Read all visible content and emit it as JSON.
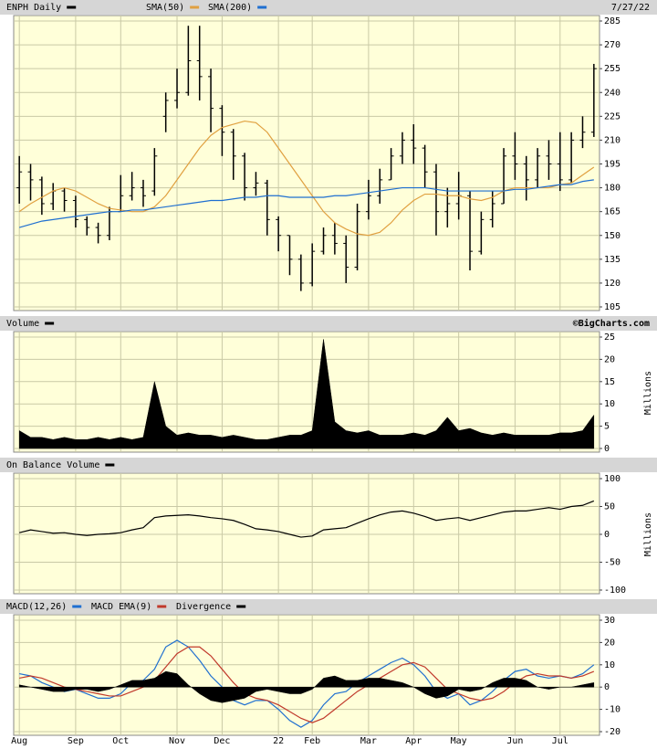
{
  "chart_data": [
    {
      "type": "ohlc",
      "date": "7/27/22",
      "ylim": [
        105,
        285
      ],
      "yticks": [
        105,
        120,
        135,
        150,
        165,
        180,
        195,
        210,
        225,
        240,
        255,
        270,
        285
      ],
      "grid": true,
      "series": [
        {
          "name": "ENPH Daily",
          "color": "#000000",
          "open": [
            180,
            190,
            185,
            170,
            178,
            172,
            160,
            155,
            150,
            165,
            175,
            180,
            178,
            225,
            235,
            240,
            260,
            250,
            230,
            215,
            200,
            180,
            183,
            160,
            150,
            135,
            120,
            140,
            150,
            145,
            130,
            165,
            175,
            185,
            200,
            210,
            205,
            190,
            165,
            170,
            175,
            140,
            160,
            170,
            200,
            195,
            185,
            200,
            195,
            185,
            210,
            215
          ],
          "high": [
            200,
            195,
            187,
            183,
            180,
            175,
            162,
            158,
            168,
            188,
            190,
            185,
            205,
            240,
            255,
            282,
            282,
            255,
            232,
            217,
            202,
            190,
            185,
            162,
            150,
            138,
            145,
            155,
            158,
            150,
            170,
            185,
            192,
            205,
            215,
            220,
            207,
            195,
            180,
            190,
            178,
            165,
            178,
            205,
            215,
            200,
            205,
            210,
            215,
            215,
            225,
            258
          ],
          "low": [
            170,
            172,
            163,
            166,
            165,
            155,
            150,
            145,
            147,
            165,
            172,
            168,
            175,
            215,
            230,
            238,
            235,
            215,
            200,
            185,
            172,
            175,
            150,
            140,
            125,
            115,
            118,
            138,
            138,
            120,
            128,
            160,
            170,
            185,
            195,
            195,
            180,
            150,
            155,
            160,
            128,
            138,
            155,
            170,
            185,
            172,
            180,
            185,
            178,
            183,
            205,
            212
          ],
          "close": [
            190,
            185,
            170,
            178,
            172,
            160,
            155,
            150,
            165,
            175,
            180,
            175,
            200,
            235,
            240,
            260,
            250,
            230,
            215,
            200,
            180,
            183,
            160,
            150,
            135,
            120,
            140,
            150,
            145,
            130,
            165,
            175,
            185,
            200,
            210,
            205,
            190,
            165,
            170,
            175,
            140,
            160,
            170,
            200,
            195,
            185,
            200,
            195,
            185,
            210,
            215,
            255
          ]
        },
        {
          "name": "SMA(50)",
          "color": "#e0a040",
          "values": [
            165,
            170,
            174,
            178,
            180,
            178,
            174,
            170,
            167,
            166,
            165,
            165,
            168,
            175,
            185,
            195,
            205,
            213,
            218,
            220,
            222,
            221,
            215,
            205,
            195,
            185,
            175,
            165,
            158,
            154,
            151,
            150,
            152,
            158,
            166,
            172,
            176,
            176,
            175,
            175,
            173,
            172,
            174,
            178,
            180,
            180,
            180,
            180,
            182,
            183,
            188,
            193
          ]
        },
        {
          "name": "SMA(200)",
          "color": "#1f6fd0",
          "values": [
            155,
            157,
            159,
            160,
            161,
            162,
            163,
            164,
            165,
            165,
            166,
            166,
            167,
            168,
            169,
            170,
            171,
            172,
            172,
            173,
            174,
            174,
            175,
            175,
            174,
            174,
            174,
            174,
            175,
            175,
            176,
            177,
            178,
            179,
            180,
            180,
            180,
            179,
            178,
            178,
            178,
            178,
            178,
            178,
            179,
            179,
            180,
            181,
            182,
            182,
            184,
            185
          ]
        }
      ]
    },
    {
      "type": "area",
      "credit": "©BigCharts.com",
      "y_label": "Millions",
      "ylim": [
        0,
        25
      ],
      "yticks": [
        0,
        5,
        10,
        15,
        20,
        25
      ],
      "grid": true,
      "series": [
        {
          "name": "Volume",
          "color": "#000000",
          "values": [
            4,
            2.5,
            2.5,
            2,
            2.5,
            2,
            2,
            2.5,
            2,
            2.5,
            2,
            2.5,
            15,
            5,
            3,
            3.5,
            3,
            3,
            2.5,
            3,
            2.5,
            2,
            2,
            2.5,
            3,
            3,
            4,
            24.5,
            6,
            4,
            3.5,
            4,
            3,
            3,
            3,
            3.5,
            3,
            4,
            7,
            4,
            4.5,
            3.5,
            3,
            3.5,
            3,
            3,
            3,
            3,
            3.5,
            3.5,
            4,
            7.5
          ]
        }
      ]
    },
    {
      "type": "line",
      "y_label": "Millions",
      "ylim": [
        -100,
        100
      ],
      "yticks": [
        -100,
        -50,
        0,
        50,
        100
      ],
      "grid": true,
      "series": [
        {
          "name": "On Balance Volume",
          "color": "#000000",
          "values": [
            3,
            8,
            5,
            2,
            3,
            0,
            -2,
            0,
            1,
            3,
            8,
            12,
            30,
            33,
            34,
            35,
            33,
            30,
            28,
            25,
            18,
            10,
            8,
            5,
            0,
            -5,
            -3,
            8,
            10,
            12,
            20,
            28,
            35,
            40,
            42,
            38,
            32,
            25,
            28,
            30,
            25,
            30,
            35,
            40,
            42,
            42,
            45,
            48,
            45,
            50,
            52,
            60
          ]
        }
      ]
    },
    {
      "type": "line",
      "categories": [
        "Aug",
        null,
        null,
        null,
        null,
        "Sep",
        null,
        null,
        null,
        "Oct",
        null,
        null,
        null,
        null,
        "Nov",
        null,
        null,
        null,
        "Dec",
        null,
        null,
        null,
        null,
        "22",
        null,
        null,
        "Feb",
        null,
        null,
        null,
        null,
        "Mar",
        null,
        null,
        null,
        "Apr",
        null,
        null,
        null,
        "May",
        null,
        null,
        null,
        null,
        "Jun",
        null,
        null,
        null,
        "Jul",
        null,
        null,
        null
      ],
      "ylim": [
        -20,
        30
      ],
      "yticks": [
        -20,
        -10,
        0,
        10,
        20,
        30
      ],
      "grid": true,
      "series": [
        {
          "name": "MACD(12,26)",
          "color": "#1f6fd0",
          "values": [
            6,
            5,
            2,
            0,
            -2,
            -1,
            -3,
            -5,
            -5,
            -3,
            2,
            3,
            8,
            18,
            21,
            18,
            12,
            5,
            0,
            -6,
            -8,
            -6,
            -6,
            -10,
            -15,
            -18,
            -15,
            -8,
            -3,
            -2,
            2,
            5,
            8,
            11,
            13,
            10,
            5,
            -2,
            -5,
            -3,
            -8,
            -6,
            -2,
            3,
            7,
            8,
            5,
            4,
            5,
            4,
            6,
            10
          ]
        },
        {
          "name": "MACD EMA(9)",
          "color": "#c0392b",
          "values": [
            4,
            5,
            4,
            2,
            0,
            -1,
            -2,
            -3,
            -4,
            -4,
            -2,
            0,
            3,
            9,
            15,
            18,
            18,
            14,
            8,
            2,
            -3,
            -5,
            -6,
            -8,
            -11,
            -14,
            -16,
            -14,
            -10,
            -6,
            -2,
            1,
            4,
            7,
            10,
            11,
            9,
            4,
            -1,
            -3,
            -5,
            -6,
            -5,
            -2,
            2,
            5,
            6,
            5,
            5,
            4,
            5,
            7
          ]
        },
        {
          "name": "Divergence",
          "color": "#000000",
          "kind": "area",
          "values": [
            1,
            0,
            -1,
            -2,
            -2,
            -1,
            -1,
            -2,
            -1,
            1,
            3,
            3,
            4,
            7,
            6,
            1,
            -3,
            -6,
            -7,
            -6,
            -5,
            -2,
            -1,
            -2,
            -3,
            -3,
            -1,
            4,
            5,
            3,
            3,
            4,
            4,
            3,
            2,
            0,
            -3,
            -5,
            -4,
            -1,
            -2,
            -1,
            2,
            4,
            4,
            3,
            0,
            -1,
            0,
            0,
            1,
            2
          ]
        }
      ]
    }
  ]
}
